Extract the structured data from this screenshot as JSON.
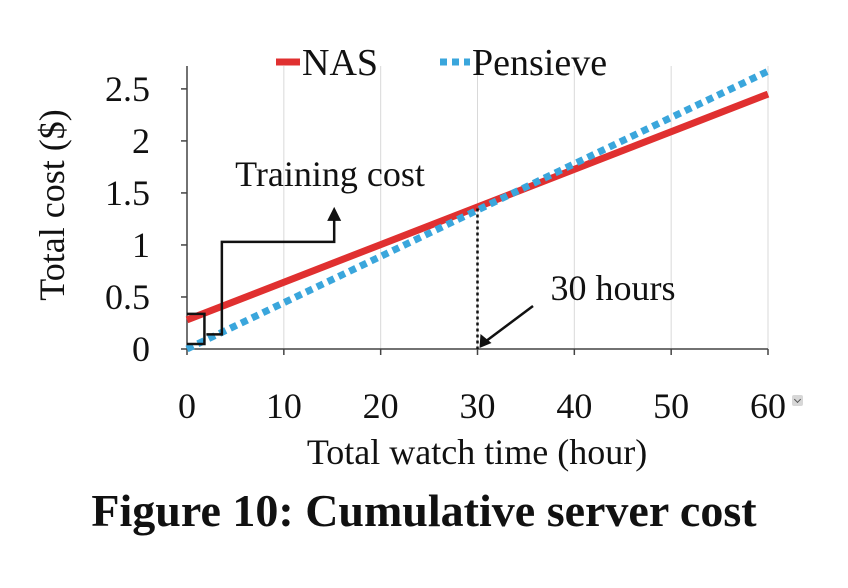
{
  "chart_data": {
    "type": "line",
    "xlabel": "Total watch time (hour)",
    "ylabel": "Total cost ($)",
    "xlim": [
      0,
      60
    ],
    "ylim": [
      0,
      2.5
    ],
    "xticks": [
      "0",
      "10",
      "20",
      "30",
      "40",
      "50",
      "60"
    ],
    "yticks": [
      "0",
      "0.5",
      "1",
      "1.5",
      "2",
      "2.5"
    ],
    "grid": "vertical",
    "legend_position": "top",
    "series": [
      {
        "name": "NAS",
        "color": "#e03030",
        "style": "solid",
        "x": [
          0,
          60
        ],
        "y": [
          0.28,
          2.45
        ]
      },
      {
        "name": "Pensieve",
        "color": "#3aa6dc",
        "style": "dotted",
        "x": [
          0,
          60
        ],
        "y": [
          0.0,
          2.67
        ]
      }
    ],
    "annotations": [
      {
        "text": "Training cost"
      },
      {
        "text": "30 hours"
      }
    ]
  },
  "caption": "Figure 10: Cumulative server cost"
}
